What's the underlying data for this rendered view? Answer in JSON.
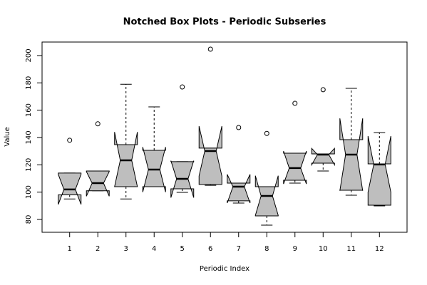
{
  "chart_data": {
    "type": "box",
    "title": "Notched Box Plots - Periodic Subseries",
    "x_label": "Periodic Index",
    "y_label": "Value",
    "x": [
      1,
      2,
      3,
      4,
      5,
      6,
      7,
      8,
      9,
      10,
      11,
      12
    ],
    "xlim": [
      0.02,
      12.98
    ],
    "ylim": [
      70.6,
      209.9
    ],
    "yticks": [
      80,
      100,
      120,
      140,
      160,
      180,
      200
    ],
    "color": "#bebebe",
    "boxes": [
      {
        "min": 95,
        "q1": 98,
        "median": 102,
        "q3": 114,
        "max": 114,
        "notch_low": 91,
        "notch_high": 113,
        "outliers": [
          138
        ]
      },
      {
        "min": 101,
        "q1": 101,
        "median": 106.6,
        "q3": 115.5,
        "max": 115.5,
        "notch_low": 97,
        "notch_high": 115,
        "outliers": [
          150
        ]
      },
      {
        "min": 95,
        "q1": 104,
        "median": 123.3,
        "q3": 134.8,
        "max": 179,
        "notch_low": 104,
        "notch_high": 144,
        "outliers": []
      },
      {
        "min": 104,
        "q1": 104,
        "median": 116.5,
        "q3": 130.6,
        "max": 162.4,
        "notch_low": 100,
        "notch_high": 133,
        "outliers": []
      },
      {
        "min": 99.8,
        "q1": 102.4,
        "median": 109.7,
        "q3": 122.3,
        "max": 122.3,
        "notch_low": 96,
        "notch_high": 123,
        "outliers": [
          177
        ]
      },
      {
        "min": 105,
        "q1": 105.6,
        "median": 130.1,
        "q3": 132.2,
        "max": 132.2,
        "notch_low": 111.8,
        "notch_high": 148.3,
        "outliers": [
          204.7
        ]
      },
      {
        "min": 92,
        "q1": 93.6,
        "median": 104,
        "q3": 106.6,
        "max": 106.6,
        "notch_low": 92,
        "notch_high": 113,
        "outliers": [
          147.3
        ]
      },
      {
        "min": 75.8,
        "q1": 82.6,
        "median": 97.2,
        "q3": 104,
        "max": 104,
        "notch_low": 83,
        "notch_high": 112,
        "outliers": [
          143
        ]
      },
      {
        "min": 106.6,
        "q1": 108.7,
        "median": 117.6,
        "q3": 128.5,
        "max": 128.5,
        "notch_low": 106,
        "notch_high": 130,
        "outliers": [
          165
        ]
      },
      {
        "min": 115.5,
        "q1": 121.2,
        "median": 127.5,
        "q3": 128,
        "max": 128,
        "notch_low": 120,
        "notch_high": 132,
        "outliers": [
          175
        ]
      },
      {
        "min": 97.7,
        "q1": 101.4,
        "median": 127.5,
        "q3": 138.4,
        "max": 176,
        "notch_low": 101,
        "notch_high": 154,
        "outliers": []
      },
      {
        "min": 89.9,
        "q1": 90.4,
        "median": 120.2,
        "q3": 120.7,
        "max": 143.6,
        "notch_low": 100,
        "notch_high": 141,
        "outliers": []
      }
    ]
  }
}
